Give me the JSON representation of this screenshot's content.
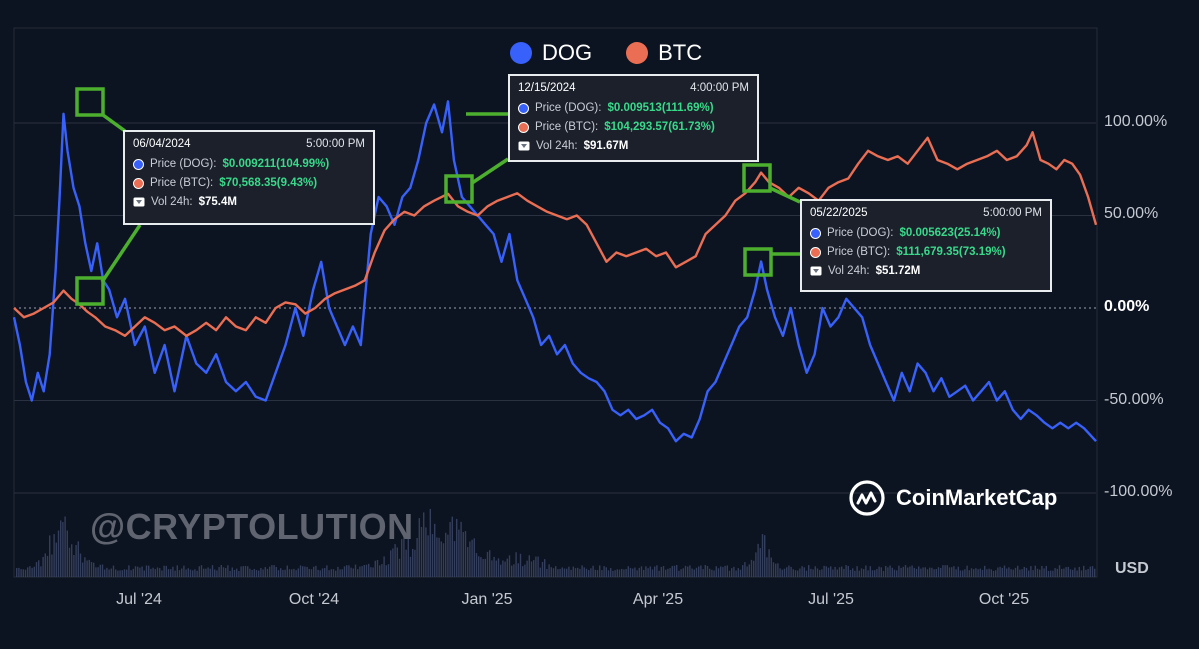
{
  "chart_data": {
    "type": "line",
    "title": "",
    "xlabel": "",
    "ylabel": "",
    "currency_label": "USD",
    "y_tick_labels": [
      "100.00%",
      "50.00%",
      "0.00%",
      "-50.00%",
      "-100.00%"
    ],
    "y_ticks": [
      100,
      50,
      0,
      -50,
      -100
    ],
    "ylim": [
      -100,
      150
    ],
    "x_tick_labels": [
      "Jul '24",
      "Oct '24",
      "Jan '25",
      "Apr '25",
      "Jul '25",
      "Oct '25"
    ],
    "x_tick_dates": [
      "2024-07-01",
      "2024-10-01",
      "2025-01-01",
      "2025-04-01",
      "2025-07-01",
      "2025-10-01"
    ],
    "x_range": [
      "2024-05-10",
      "2025-11-07"
    ],
    "grid": true,
    "legend_position": "top-center",
    "series": [
      {
        "name": "DOG",
        "color": "#3861fb",
        "points": [
          [
            "2024-05-10",
            -5
          ],
          [
            "2024-05-13",
            -20
          ],
          [
            "2024-05-16",
            -40
          ],
          [
            "2024-05-19",
            -50
          ],
          [
            "2024-05-22",
            -35
          ],
          [
            "2024-05-25",
            -45
          ],
          [
            "2024-05-28",
            -25
          ],
          [
            "2024-05-31",
            20
          ],
          [
            "2024-06-02",
            60
          ],
          [
            "2024-06-04",
            105
          ],
          [
            "2024-06-06",
            85
          ],
          [
            "2024-06-09",
            65
          ],
          [
            "2024-06-12",
            55
          ],
          [
            "2024-06-15",
            35
          ],
          [
            "2024-06-18",
            20
          ],
          [
            "2024-06-21",
            35
          ],
          [
            "2024-06-24",
            15
          ],
          [
            "2024-06-27",
            10
          ],
          [
            "2024-07-01",
            -5
          ],
          [
            "2024-07-05",
            5
          ],
          [
            "2024-07-10",
            -20
          ],
          [
            "2024-07-15",
            -10
          ],
          [
            "2024-07-20",
            -35
          ],
          [
            "2024-07-25",
            -20
          ],
          [
            "2024-07-30",
            -45
          ],
          [
            "2024-08-05",
            -15
          ],
          [
            "2024-08-10",
            -30
          ],
          [
            "2024-08-15",
            -35
          ],
          [
            "2024-08-20",
            -25
          ],
          [
            "2024-08-25",
            -40
          ],
          [
            "2024-08-30",
            -45
          ],
          [
            "2024-09-04",
            -40
          ],
          [
            "2024-09-09",
            -48
          ],
          [
            "2024-09-14",
            -50
          ],
          [
            "2024-09-19",
            -35
          ],
          [
            "2024-09-24",
            -20
          ],
          [
            "2024-09-29",
            0
          ],
          [
            "2024-10-03",
            -15
          ],
          [
            "2024-10-08",
            10
          ],
          [
            "2024-10-12",
            25
          ],
          [
            "2024-10-16",
            0
          ],
          [
            "2024-10-20",
            -10
          ],
          [
            "2024-10-24",
            -20
          ],
          [
            "2024-10-28",
            -10
          ],
          [
            "2024-11-01",
            -20
          ],
          [
            "2024-11-06",
            40
          ],
          [
            "2024-11-10",
            60
          ],
          [
            "2024-11-14",
            55
          ],
          [
            "2024-11-18",
            45
          ],
          [
            "2024-11-22",
            60
          ],
          [
            "2024-11-26",
            65
          ],
          [
            "2024-11-30",
            80
          ],
          [
            "2024-12-04",
            100
          ],
          [
            "2024-12-08",
            110
          ],
          [
            "2024-12-12",
            95
          ],
          [
            "2024-12-15",
            111.69
          ],
          [
            "2024-12-18",
            80
          ],
          [
            "2024-12-22",
            60
          ],
          [
            "2024-12-26",
            55
          ],
          [
            "2024-12-30",
            50
          ],
          [
            "2025-01-03",
            45
          ],
          [
            "2025-01-07",
            40
          ],
          [
            "2025-01-11",
            25
          ],
          [
            "2025-01-15",
            40
          ],
          [
            "2025-01-19",
            15
          ],
          [
            "2025-01-23",
            5
          ],
          [
            "2025-01-27",
            -5
          ],
          [
            "2025-01-31",
            -20
          ],
          [
            "2025-02-04",
            -15
          ],
          [
            "2025-02-08",
            -25
          ],
          [
            "2025-02-12",
            -20
          ],
          [
            "2025-02-16",
            -30
          ],
          [
            "2025-02-20",
            -35
          ],
          [
            "2025-02-24",
            -38
          ],
          [
            "2025-02-28",
            -40
          ],
          [
            "2025-03-04",
            -45
          ],
          [
            "2025-03-08",
            -55
          ],
          [
            "2025-03-12",
            -58
          ],
          [
            "2025-03-16",
            -55
          ],
          [
            "2025-03-20",
            -60
          ],
          [
            "2025-03-24",
            -58
          ],
          [
            "2025-03-28",
            -55
          ],
          [
            "2025-04-01",
            -62
          ],
          [
            "2025-04-05",
            -65
          ],
          [
            "2025-04-09",
            -72
          ],
          [
            "2025-04-13",
            -68
          ],
          [
            "2025-04-17",
            -70
          ],
          [
            "2025-04-21",
            -60
          ],
          [
            "2025-04-25",
            -45
          ],
          [
            "2025-04-29",
            -40
          ],
          [
            "2025-05-03",
            -30
          ],
          [
            "2025-05-07",
            -20
          ],
          [
            "2025-05-11",
            -10
          ],
          [
            "2025-05-15",
            -5
          ],
          [
            "2025-05-19",
            10
          ],
          [
            "2025-05-22",
            25.14
          ],
          [
            "2025-05-25",
            10
          ],
          [
            "2025-05-29",
            -5
          ],
          [
            "2025-06-02",
            -15
          ],
          [
            "2025-06-06",
            0
          ],
          [
            "2025-06-10",
            -20
          ],
          [
            "2025-06-14",
            -35
          ],
          [
            "2025-06-18",
            -25
          ],
          [
            "2025-06-22",
            0
          ],
          [
            "2025-06-26",
            -10
          ],
          [
            "2025-06-30",
            -5
          ],
          [
            "2025-07-04",
            5
          ],
          [
            "2025-07-08",
            0
          ],
          [
            "2025-07-12",
            -5
          ],
          [
            "2025-07-16",
            -20
          ],
          [
            "2025-07-20",
            -30
          ],
          [
            "2025-07-24",
            -40
          ],
          [
            "2025-07-28",
            -50
          ],
          [
            "2025-08-01",
            -35
          ],
          [
            "2025-08-05",
            -45
          ],
          [
            "2025-08-09",
            -30
          ],
          [
            "2025-08-13",
            -35
          ],
          [
            "2025-08-17",
            -45
          ],
          [
            "2025-08-21",
            -38
          ],
          [
            "2025-08-25",
            -48
          ],
          [
            "2025-08-29",
            -45
          ],
          [
            "2025-09-02",
            -42
          ],
          [
            "2025-09-06",
            -50
          ],
          [
            "2025-09-10",
            -45
          ],
          [
            "2025-09-14",
            -40
          ],
          [
            "2025-09-18",
            -50
          ],
          [
            "2025-09-22",
            -45
          ],
          [
            "2025-09-26",
            -55
          ],
          [
            "2025-09-30",
            -60
          ],
          [
            "2025-10-04",
            -55
          ],
          [
            "2025-10-08",
            -58
          ],
          [
            "2025-10-12",
            -62
          ],
          [
            "2025-10-16",
            -65
          ],
          [
            "2025-10-20",
            -62
          ],
          [
            "2025-10-24",
            -65
          ],
          [
            "2025-10-28",
            -62
          ],
          [
            "2025-11-01",
            -65
          ],
          [
            "2025-11-07",
            -72
          ]
        ]
      },
      {
        "name": "BTC",
        "color": "#ea6e53",
        "points": [
          [
            "2024-05-10",
            0
          ],
          [
            "2024-05-15",
            -5
          ],
          [
            "2024-05-20",
            -3
          ],
          [
            "2024-05-25",
            0
          ],
          [
            "2024-05-30",
            3
          ],
          [
            "2024-06-04",
            9.43
          ],
          [
            "2024-06-08",
            5
          ],
          [
            "2024-06-12",
            2
          ],
          [
            "2024-06-16",
            -2
          ],
          [
            "2024-06-20",
            -5
          ],
          [
            "2024-06-25",
            -10
          ],
          [
            "2024-06-30",
            -12
          ],
          [
            "2024-07-05",
            -15
          ],
          [
            "2024-07-10",
            -10
          ],
          [
            "2024-07-15",
            -5
          ],
          [
            "2024-07-20",
            -8
          ],
          [
            "2024-07-25",
            -12
          ],
          [
            "2024-07-30",
            -10
          ],
          [
            "2024-08-05",
            -15
          ],
          [
            "2024-08-10",
            -12
          ],
          [
            "2024-08-15",
            -8
          ],
          [
            "2024-08-20",
            -12
          ],
          [
            "2024-08-25",
            -5
          ],
          [
            "2024-08-30",
            -10
          ],
          [
            "2024-09-04",
            -12
          ],
          [
            "2024-09-09",
            -5
          ],
          [
            "2024-09-14",
            -8
          ],
          [
            "2024-09-19",
            0
          ],
          [
            "2024-09-24",
            3
          ],
          [
            "2024-09-29",
            2
          ],
          [
            "2024-10-04",
            -3
          ],
          [
            "2024-10-09",
            0
          ],
          [
            "2024-10-14",
            5
          ],
          [
            "2024-10-19",
            8
          ],
          [
            "2024-10-24",
            10
          ],
          [
            "2024-10-29",
            12
          ],
          [
            "2024-11-03",
            15
          ],
          [
            "2024-11-08",
            30
          ],
          [
            "2024-11-13",
            42
          ],
          [
            "2024-11-18",
            48
          ],
          [
            "2024-11-23",
            52
          ],
          [
            "2024-11-28",
            50
          ],
          [
            "2024-12-03",
            55
          ],
          [
            "2024-12-08",
            58
          ],
          [
            "2024-12-15",
            61.73
          ],
          [
            "2024-12-20",
            55
          ],
          [
            "2024-12-25",
            52
          ],
          [
            "2024-12-30",
            50
          ],
          [
            "2025-01-04",
            55
          ],
          [
            "2025-01-09",
            58
          ],
          [
            "2025-01-14",
            60
          ],
          [
            "2025-01-19",
            62
          ],
          [
            "2025-01-24",
            58
          ],
          [
            "2025-01-29",
            55
          ],
          [
            "2025-02-03",
            52
          ],
          [
            "2025-02-08",
            50
          ],
          [
            "2025-02-13",
            48
          ],
          [
            "2025-02-18",
            50
          ],
          [
            "2025-02-23",
            45
          ],
          [
            "2025-02-28",
            35
          ],
          [
            "2025-03-05",
            25
          ],
          [
            "2025-03-10",
            30
          ],
          [
            "2025-03-15",
            28
          ],
          [
            "2025-03-20",
            30
          ],
          [
            "2025-03-25",
            32
          ],
          [
            "2025-03-30",
            28
          ],
          [
            "2025-04-04",
            30
          ],
          [
            "2025-04-09",
            22
          ],
          [
            "2025-04-14",
            25
          ],
          [
            "2025-04-19",
            28
          ],
          [
            "2025-04-24",
            40
          ],
          [
            "2025-04-29",
            45
          ],
          [
            "2025-05-04",
            50
          ],
          [
            "2025-05-09",
            58
          ],
          [
            "2025-05-14",
            62
          ],
          [
            "2025-05-19",
            68
          ],
          [
            "2025-05-22",
            73.19
          ],
          [
            "2025-05-26",
            68
          ],
          [
            "2025-05-31",
            65
          ],
          [
            "2025-06-05",
            60
          ],
          [
            "2025-06-10",
            65
          ],
          [
            "2025-06-15",
            62
          ],
          [
            "2025-06-20",
            58
          ],
          [
            "2025-06-25",
            65
          ],
          [
            "2025-06-30",
            68
          ],
          [
            "2025-07-05",
            70
          ],
          [
            "2025-07-10",
            78
          ],
          [
            "2025-07-15",
            85
          ],
          [
            "2025-07-20",
            82
          ],
          [
            "2025-07-25",
            80
          ],
          [
            "2025-07-30",
            82
          ],
          [
            "2025-08-04",
            78
          ],
          [
            "2025-08-09",
            85
          ],
          [
            "2025-08-14",
            92
          ],
          [
            "2025-08-19",
            80
          ],
          [
            "2025-08-24",
            78
          ],
          [
            "2025-08-29",
            75
          ],
          [
            "2025-09-03",
            78
          ],
          [
            "2025-09-08",
            80
          ],
          [
            "2025-09-13",
            82
          ],
          [
            "2025-09-18",
            85
          ],
          [
            "2025-09-23",
            80
          ],
          [
            "2025-09-28",
            82
          ],
          [
            "2025-10-03",
            88
          ],
          [
            "2025-10-06",
            95
          ],
          [
            "2025-10-10",
            80
          ],
          [
            "2025-10-14",
            78
          ],
          [
            "2025-10-18",
            75
          ],
          [
            "2025-10-22",
            80
          ],
          [
            "2025-10-26",
            78
          ],
          [
            "2025-10-30",
            72
          ],
          [
            "2025-11-03",
            60
          ],
          [
            "2025-11-07",
            45
          ]
        ]
      }
    ],
    "volume_profile": "spikes around Jun '24 and Dec '24, low elsewhere",
    "tooltips": [
      {
        "date": "06/04/2024",
        "time": "5:00:00 PM",
        "dog_label": "Price (DOG):",
        "dog_value": "$0.009211(104.99%)",
        "btc_label": "Price (BTC):",
        "btc_value": "$70,568.35(9.43%)",
        "vol_label": "Vol 24h:",
        "vol_value": "$75.4M"
      },
      {
        "date": "12/15/2024",
        "time": "4:00:00 PM",
        "dog_label": "Price (DOG):",
        "dog_value": "$0.009513(111.69%)",
        "btc_label": "Price (BTC):",
        "btc_value": "$104,293.57(61.73%)",
        "vol_label": "Vol 24h:",
        "vol_value": "$91.67M"
      },
      {
        "date": "05/22/2025",
        "time": "5:00:00 PM",
        "dog_label": "Price (DOG):",
        "dog_value": "$0.005623(25.14%)",
        "btc_label": "Price (BTC):",
        "btc_value": "$111,679.35(73.19%)",
        "vol_label": "Vol 24h:",
        "vol_value": "$51.72M"
      }
    ]
  },
  "legend": {
    "dog": "DOG",
    "btc": "BTC"
  },
  "watermark": "@CRYPTOLUTION",
  "brand": "CoinMarketCap",
  "colors": {
    "background": "#0d1421",
    "dog": "#3861fb",
    "btc": "#ea6e53",
    "highlight": "#4caf2e",
    "positive": "#39d98a"
  },
  "icons": {
    "brand": "coinmarketcap-logo-icon",
    "volume": "volume-shield-icon"
  }
}
